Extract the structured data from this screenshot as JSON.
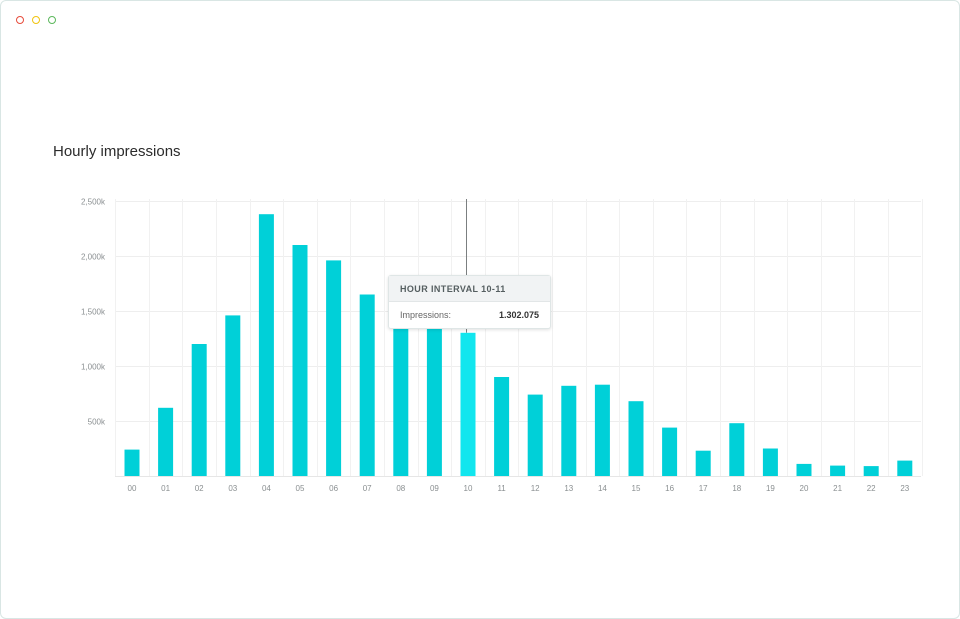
{
  "window": {
    "controls": [
      {
        "name": "close",
        "color": "#e74c3c"
      },
      {
        "name": "minimize",
        "color": "#f1c40f"
      },
      {
        "name": "maximize",
        "color": "#5cb85c"
      }
    ]
  },
  "chart_data": {
    "type": "bar",
    "title": "Hourly impressions",
    "xlabel": "",
    "ylabel": "",
    "categories": [
      "00",
      "01",
      "02",
      "03",
      "04",
      "05",
      "06",
      "07",
      "08",
      "09",
      "10",
      "11",
      "12",
      "13",
      "14",
      "15",
      "16",
      "17",
      "18",
      "19",
      "20",
      "21",
      "22",
      "23"
    ],
    "values": [
      240,
      620,
      1200,
      1460,
      2380,
      2100,
      1960,
      1650,
      1340,
      1350,
      1302.075,
      900,
      740,
      820,
      830,
      680,
      440,
      230,
      480,
      250,
      110,
      95,
      90,
      140
    ],
    "ylim": [
      0,
      2500
    ],
    "yticks": [
      500,
      1000,
      1500,
      2000,
      2500
    ],
    "ytick_labels": [
      "500k",
      "1,000k",
      "1,500k",
      "2,000k",
      "2,500k"
    ],
    "grid": true,
    "bar_color": "#00d0d8",
    "highlight_color": "#12e6ee",
    "highlight_index": 10
  },
  "tooltip": {
    "title": "HOUR INTERVAL 10-11",
    "label": "Impressions:",
    "value": "1.302.075"
  }
}
